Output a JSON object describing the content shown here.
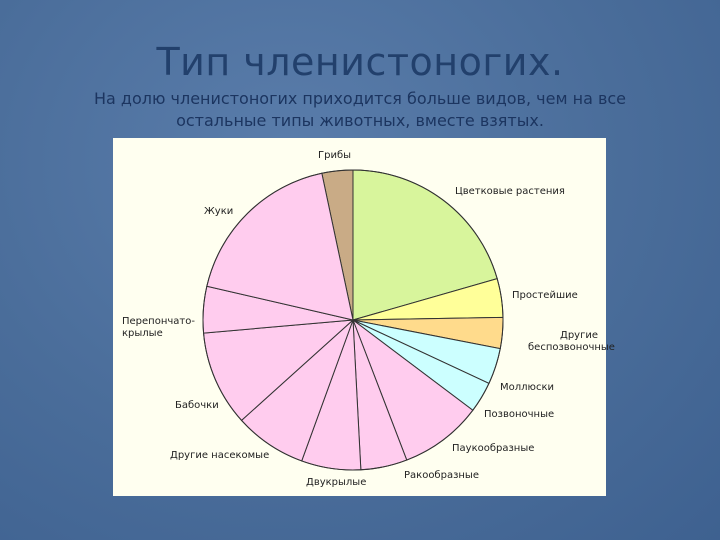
{
  "chart_data": {
    "type": "pie",
    "title": "Тип членистоногих.",
    "subtitle": "На долю членистоногих приходится больше видов, чем на все остальные типы животных, вместе взятых.",
    "categories": [
      "Грибы",
      "Цветковые растения",
      "Простейшие",
      "Другие беспозвоночные",
      "Моллюски",
      "Позвоночные",
      "Паукообразные",
      "Ракообразные",
      "Двукрылые",
      "Другие насекомые",
      "Бабочки",
      "Перепончато-крылые",
      "Жуки"
    ],
    "values": [
      12,
      74,
      15,
      12,
      14,
      12,
      32,
      18,
      23,
      28,
      37,
      18,
      65
    ],
    "colors": [
      "#c9ab86",
      "#d8f59c",
      "#ffff99",
      "#ffdb8c",
      "#ccffff",
      "#ccffff",
      "#ffccee",
      "#ffccee",
      "#ffccee",
      "#ffccee",
      "#ffccee",
      "#ffccee",
      "#ffccee"
    ]
  }
}
